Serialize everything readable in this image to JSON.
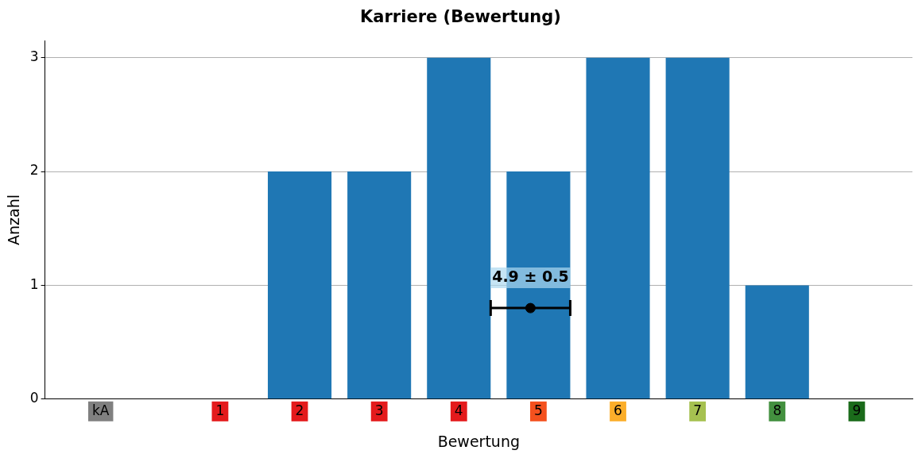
{
  "chart_data": {
    "type": "bar",
    "title": "Karriere (Bewertung)",
    "xlabel": "Bewertung",
    "ylabel": "Anzahl",
    "x": [
      -0.5,
      1,
      2,
      3,
      4,
      5,
      6,
      7,
      8,
      9
    ],
    "series": [
      {
        "color": "#1f77b4",
        "values": [
          0,
          0,
          2,
          2,
          3,
          2,
          3,
          3,
          1,
          0
        ]
      },
      {
        "type": "scatter",
        "color": "#000000",
        "x": [
          4.9
        ],
        "values": [
          0.8
        ],
        "xerrors": [
          0.5
        ]
      }
    ],
    "xlim": [
      -1.2,
      9.7
    ],
    "xticks": [
      {
        "value": -0.5,
        "label": "kA"
      },
      1,
      2,
      3,
      4,
      5,
      6,
      7,
      8,
      9
    ],
    "ylim": [
      0,
      3.15
    ],
    "yticks": [
      0,
      1,
      2,
      3
    ],
    "grid": "y",
    "annotations": [
      "4.9 ± 0.5"
    ]
  }
}
